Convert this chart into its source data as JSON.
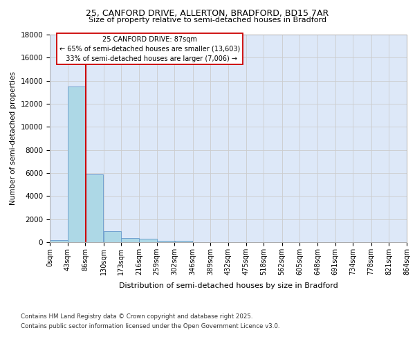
{
  "title_line1": "25, CANFORD DRIVE, ALLERTON, BRADFORD, BD15 7AR",
  "title_line2": "Size of property relative to semi-detached houses in Bradford",
  "xlabel": "Distribution of semi-detached houses by size in Bradford",
  "ylabel": "Number of semi-detached properties",
  "bin_labels": [
    "0sqm",
    "43sqm",
    "86sqm",
    "130sqm",
    "173sqm",
    "216sqm",
    "259sqm",
    "302sqm",
    "346sqm",
    "389sqm",
    "432sqm",
    "475sqm",
    "518sqm",
    "562sqm",
    "605sqm",
    "648sqm",
    "691sqm",
    "734sqm",
    "778sqm",
    "821sqm",
    "864sqm"
  ],
  "bin_edges": [
    0,
    43,
    86,
    130,
    173,
    216,
    259,
    302,
    346,
    389,
    432,
    475,
    518,
    562,
    605,
    648,
    691,
    734,
    778,
    821,
    864
  ],
  "bar_heights": [
    200,
    13500,
    5900,
    950,
    340,
    300,
    130,
    130,
    0,
    0,
    0,
    0,
    0,
    0,
    0,
    0,
    0,
    0,
    0,
    0
  ],
  "bar_color": "#add8e6",
  "bar_edge_color": "#6699cc",
  "property_size": 87,
  "property_line_color": "#cc0000",
  "smaller_pct": "65%",
  "smaller_count": "13,603",
  "larger_pct": "33%",
  "larger_count": "7,006",
  "annotation_box_color": "#cc0000",
  "ylim": [
    0,
    18000
  ],
  "yticks": [
    0,
    2000,
    4000,
    6000,
    8000,
    10000,
    12000,
    14000,
    16000,
    18000
  ],
  "grid_color": "#cccccc",
  "bg_color": "#dde8f8",
  "footnote1": "Contains HM Land Registry data © Crown copyright and database right 2025.",
  "footnote2": "Contains public sector information licensed under the Open Government Licence v3.0."
}
